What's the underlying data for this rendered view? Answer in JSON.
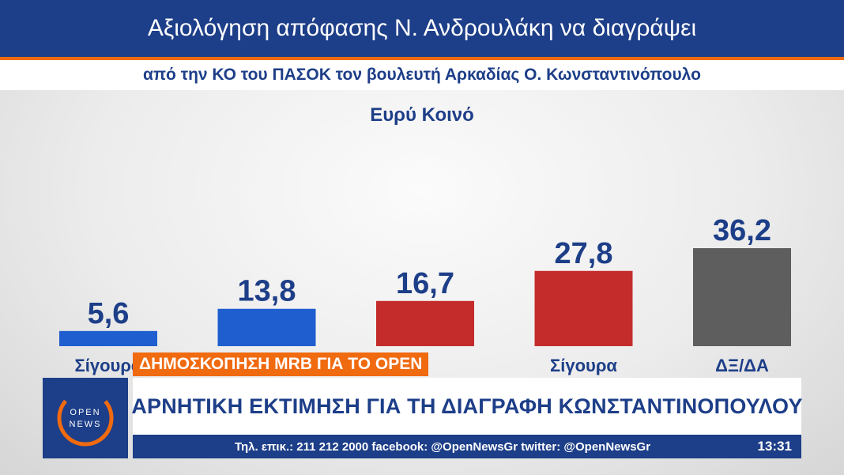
{
  "header": {
    "title": "Αξιολόγηση απόφασης Ν.  Ανδρουλάκη να διαγράψει",
    "subtitle": "από την ΚΟ του ΠΑΣΟΚ τον βουλευτή Αρκαδίας Ο. Κωνσταντινόπουλο"
  },
  "chart_data": {
    "type": "bar",
    "title": "Ευρύ Κοινό",
    "categories": [
      "Σίγουρα",
      "",
      "",
      "Σίγουρα",
      "ΔΞ/ΔΑ"
    ],
    "values": [
      5.6,
      13.8,
      16.7,
      27.8,
      36.2
    ],
    "data_labels": [
      "5,6",
      "13,8",
      "16,7",
      "27,8",
      "36,2"
    ],
    "colors": [
      "#1e5ecf",
      "#1e5ecf",
      "#c42c2c",
      "#c42c2c",
      "#5e5e5e"
    ],
    "ylim": [
      0,
      36.2
    ],
    "grid": false,
    "legend": "none"
  },
  "ticker": {
    "tag": "ΔΗΜΟΣΚΟΠΗΣΗ MRB ΓΙΑ ΤΟ OPEN",
    "headline": "ΑΡΝΗΤΙΚΗ ΕΚΤΙΜΗΣΗ ΓΙΑ ΤΗ ΔΙΑΓΡΑΦΗ ΚΩΝΣΤΑΝΤΙΝΟΠΟΥΛΟΥ",
    "info": "Τηλ. επικ.: 211 212 2000 facebook: @OpenNewsGr twitter: @OpenNewsGr",
    "time": "13:31"
  },
  "logo": {
    "line1": "OPEN",
    "line2": "NEWS",
    "accent": "#f06a10"
  }
}
